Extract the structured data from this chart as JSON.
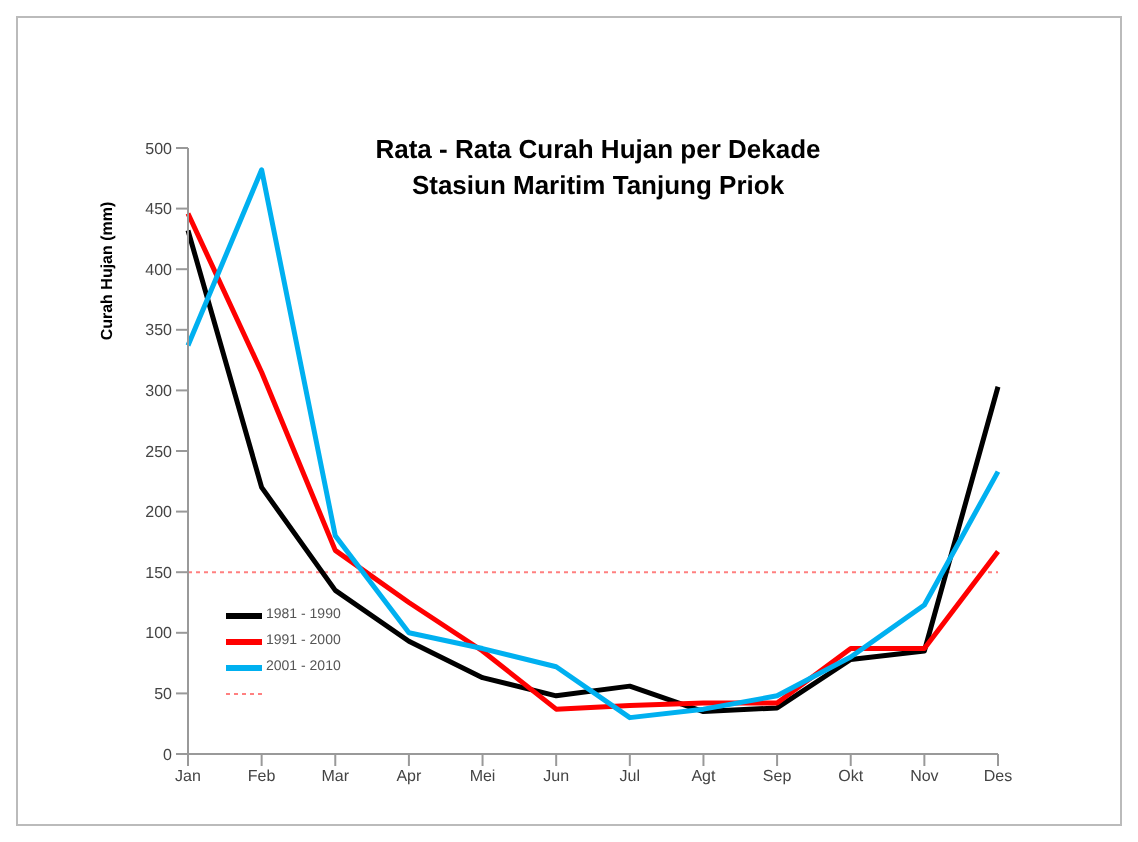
{
  "chart_data": {
    "type": "line",
    "title": "Rata - Rata Curah Hujan per Dekade",
    "subtitle": "Stasiun Maritim Tanjung Priok",
    "ylabel": "Curah Hujan (mm)",
    "categories": [
      "Jan",
      "Feb",
      "Mar",
      "Apr",
      "Mei",
      "Jun",
      "Jul",
      "Agt",
      "Sep",
      "Okt",
      "Nov",
      "Des"
    ],
    "series": [
      {
        "name": "1981 - 1990",
        "color": "#000000",
        "values": [
          432,
          220,
          135,
          93,
          63,
          48,
          56,
          35,
          38,
          78,
          85,
          303
        ]
      },
      {
        "name": "1991 - 2000",
        "color": "#ff0000",
        "values": [
          446,
          315,
          168,
          125,
          85,
          37,
          40,
          42,
          42,
          87,
          87,
          167
        ]
      },
      {
        "name": "2001 - 2010",
        "color": "#00b0f0",
        "values": [
          337,
          482,
          180,
          100,
          87,
          72,
          30,
          37,
          48,
          80,
          123,
          233
        ]
      }
    ],
    "ref_lines": [
      {
        "axis": "y",
        "value": 150,
        "color": "#ff8080",
        "line_style": "dotted"
      }
    ],
    "ylim": [
      0,
      500
    ],
    "yticks": [
      0,
      50,
      100,
      150,
      200,
      250,
      300,
      350,
      400,
      450,
      500
    ],
    "grid": false,
    "legend": "bottom left",
    "marker": "none",
    "line_style": "solid"
  }
}
